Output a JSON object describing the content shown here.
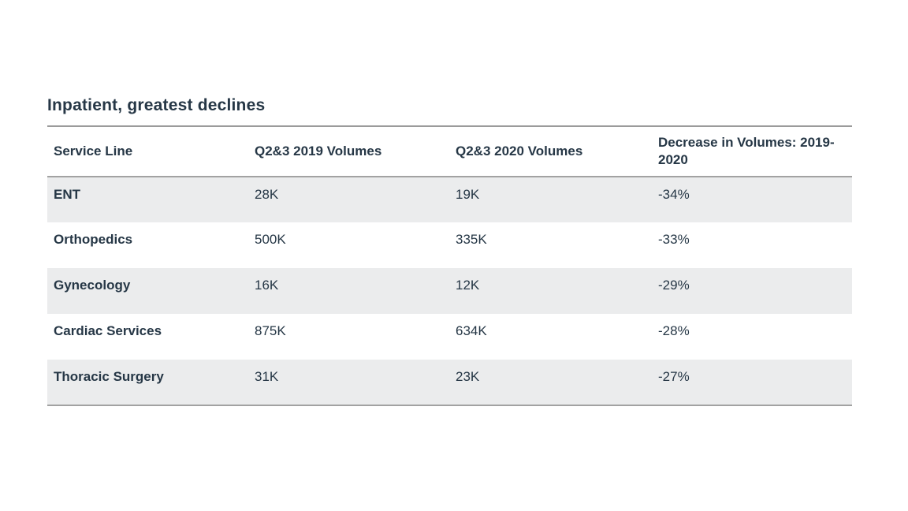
{
  "page": {
    "title": "Inpatient, greatest declines",
    "background_color": "#ffffff",
    "text_color": "#263746",
    "row_shade_color": "#ebeced",
    "rule_color": "#a2a2a2"
  },
  "chart_data": {
    "type": "table",
    "title": "Inpatient, greatest declines",
    "columns": [
      "Service Line",
      "Q2&3 2019 Volumes",
      "Q2&3 2020 Volumes",
      "Decrease in Volumes: 2019-2020"
    ],
    "rows": [
      {
        "service_line": "ENT",
        "volumes_2019": "28K",
        "volumes_2020": "19K",
        "decrease": "-34%"
      },
      {
        "service_line": "Orthopedics",
        "volumes_2019": "500K",
        "volumes_2020": "335K",
        "decrease": "-33%"
      },
      {
        "service_line": "Gynecology",
        "volumes_2019": "16K",
        "volumes_2020": "12K",
        "decrease": "-29%"
      },
      {
        "service_line": "Cardiac Services",
        "volumes_2019": "875K",
        "volumes_2020": "634K",
        "decrease": "-28%"
      },
      {
        "service_line": "Thoracic Surgery",
        "volumes_2019": "31K",
        "volumes_2020": "23K",
        "decrease": "-27%"
      }
    ]
  },
  "table": {
    "headers": {
      "service_line": "Service Line",
      "volumes_2019": "Q2&3 2019 Volumes",
      "volumes_2020": "Q2&3 2020 Volumes",
      "decrease": "Decrease in Volumes: 2019-2020"
    },
    "rows": [
      {
        "service_line": "ENT",
        "volumes_2019": "28K",
        "volumes_2020": "19K",
        "decrease": "-34%"
      },
      {
        "service_line": "Orthopedics",
        "volumes_2019": "500K",
        "volumes_2020": "335K",
        "decrease": "-33%"
      },
      {
        "service_line": "Gynecology",
        "volumes_2019": "16K",
        "volumes_2020": "12K",
        "decrease": "-29%"
      },
      {
        "service_line": "Cardiac Services",
        "volumes_2019": "875K",
        "volumes_2020": "634K",
        "decrease": "-28%"
      },
      {
        "service_line": "Thoracic Surgery",
        "volumes_2019": "31K",
        "volumes_2020": "23K",
        "decrease": "-27%"
      }
    ]
  }
}
